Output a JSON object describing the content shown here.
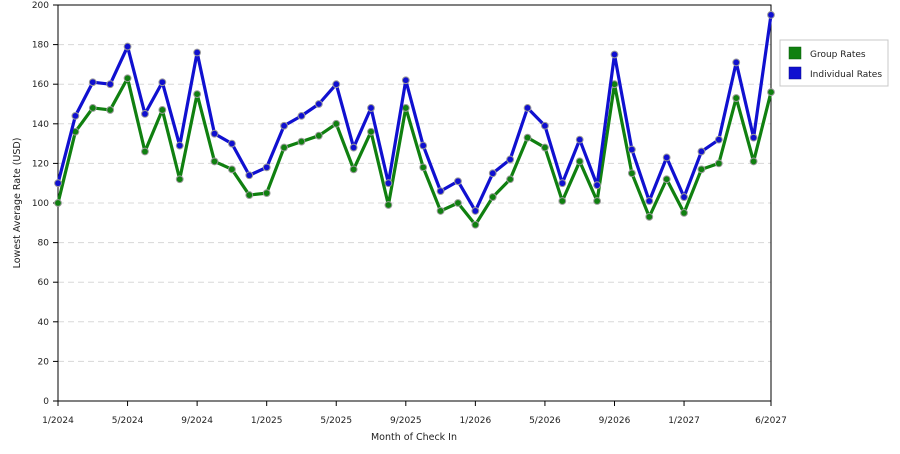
{
  "chart_data": {
    "type": "line",
    "title": "",
    "xlabel": "Month of Check In",
    "ylabel": "Lowest Average Rate (USD)",
    "ylim": [
      0,
      200
    ],
    "yticks": [
      0,
      20,
      40,
      60,
      80,
      100,
      120,
      140,
      160,
      180,
      200
    ],
    "grid": "horizontal-dashed",
    "legend_position": "top-right",
    "x": [
      "1/2024",
      "2/2024",
      "3/2024",
      "4/2024",
      "5/2024",
      "6/2024",
      "7/2024",
      "8/2024",
      "9/2024",
      "10/2024",
      "11/2024",
      "12/2024",
      "1/2025",
      "2/2025",
      "3/2025",
      "4/2025",
      "5/2025",
      "6/2025",
      "7/2025",
      "8/2025",
      "9/2025",
      "10/2025",
      "11/2025",
      "12/2025",
      "1/2026",
      "2/2026",
      "3/2026",
      "4/2026",
      "5/2026",
      "6/2026",
      "7/2026",
      "8/2026",
      "9/2026",
      "10/2026",
      "11/2026",
      "12/2026",
      "1/2027",
      "2/2027",
      "3/2027",
      "4/2027",
      "5/2027",
      "6/2027"
    ],
    "x_tick_labels": [
      "1/2024",
      "5/2024",
      "9/2024",
      "1/2025",
      "5/2025",
      "9/2025",
      "1/2026",
      "5/2026",
      "9/2026",
      "1/2027",
      "6/2027"
    ],
    "x_tick_indices": [
      0,
      4,
      8,
      12,
      16,
      20,
      24,
      28,
      32,
      36,
      41
    ],
    "series": [
      {
        "name": "Group Rates",
        "color": "#108010",
        "values": [
          100,
          136,
          148,
          147,
          163,
          126,
          147,
          112,
          155,
          121,
          117,
          104,
          105,
          128,
          131,
          134,
          140,
          117,
          136,
          99,
          148,
          118,
          96,
          100,
          89,
          103,
          112,
          133,
          128,
          101,
          121,
          101,
          160,
          115,
          93,
          112,
          95,
          117,
          120,
          153,
          121,
          156
        ]
      },
      {
        "name": "Individual Rates",
        "color": "#1010d0",
        "values": [
          110,
          144,
          161,
          160,
          179,
          145,
          161,
          129,
          176,
          135,
          130,
          114,
          118,
          139,
          144,
          150,
          160,
          128,
          148,
          110,
          162,
          129,
          106,
          111,
          96,
          115,
          122,
          148,
          139,
          110,
          132,
          109,
          175,
          127,
          101,
          123,
          103,
          126,
          132,
          171,
          133,
          195
        ]
      }
    ]
  }
}
